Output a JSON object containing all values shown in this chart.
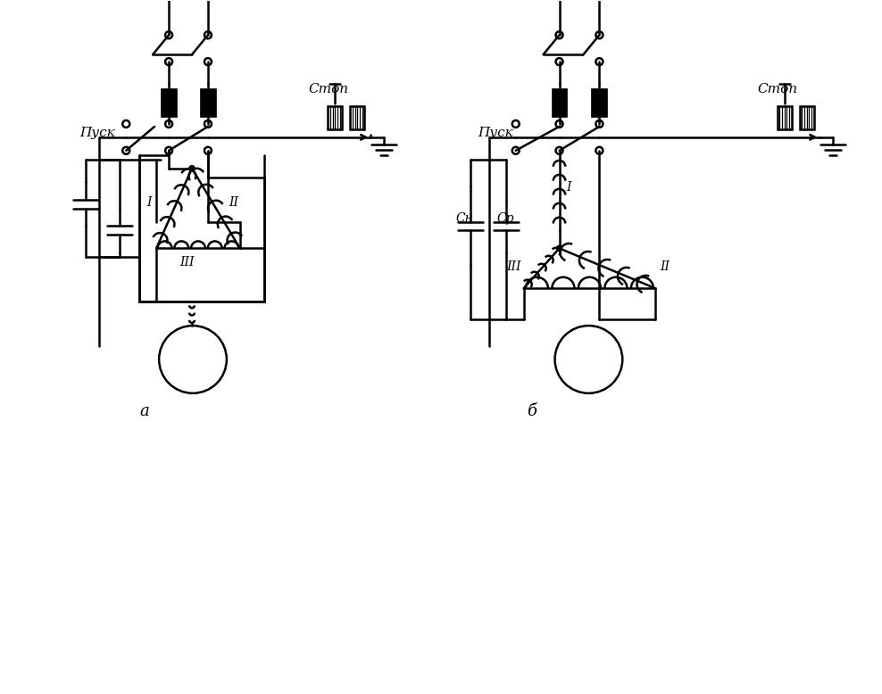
{
  "bg_color": "#ffffff",
  "line_color": "#000000",
  "line_width": 1.8,
  "fig_width": 9.88,
  "fig_height": 7.78,
  "label_a": "a",
  "label_b": "б",
  "label_pusk1": "Пуск",
  "label_pusk2": "Пуск",
  "label_stop1": "Стоп",
  "label_stop2": "Стоп",
  "label_I": "I",
  "label_II": "II",
  "label_III": "III",
  "label_Cp": "Cр",
  "label_Cn": "Cн"
}
